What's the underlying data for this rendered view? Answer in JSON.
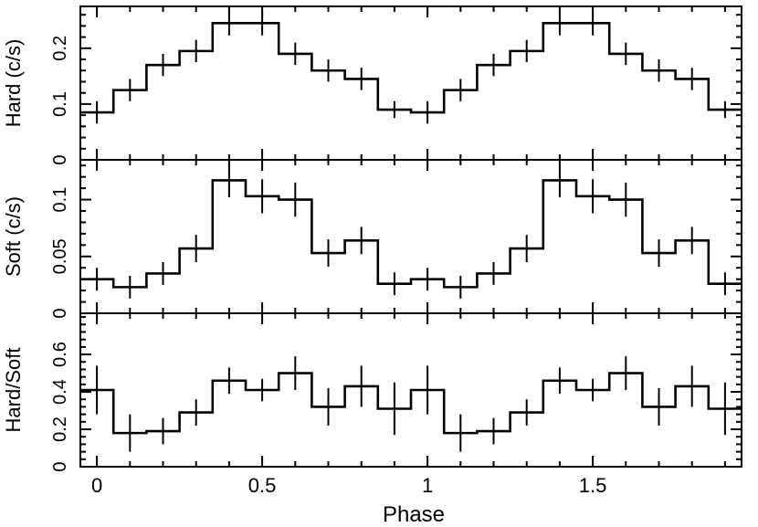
{
  "chart_data": [
    {
      "type": "line",
      "title": "",
      "xlabel": "",
      "ylabel": "Hard (c/s)",
      "xlim": [
        -0.05,
        1.95
      ],
      "ylim": [
        0,
        0.275
      ],
      "yticks": [
        0,
        0.1,
        0.2
      ],
      "ytick_labels": [
        "0",
        "0.1",
        "0.2"
      ],
      "grid": false,
      "x": [
        0.0,
        0.1,
        0.2,
        0.3,
        0.4,
        0.5,
        0.6,
        0.7,
        0.8,
        0.9,
        1.0,
        1.1,
        1.2,
        1.3,
        1.4,
        1.5,
        1.6,
        1.7,
        1.8,
        1.9
      ],
      "values": [
        0.085,
        0.125,
        0.17,
        0.195,
        0.245,
        0.245,
        0.19,
        0.16,
        0.145,
        0.09,
        0.085,
        0.125,
        0.17,
        0.195,
        0.245,
        0.245,
        0.19,
        0.16,
        0.145,
        0.09
      ],
      "errors": [
        0.02,
        0.02,
        0.02,
        0.02,
        0.022,
        0.022,
        0.02,
        0.02,
        0.02,
        0.015,
        0.02,
        0.02,
        0.02,
        0.02,
        0.022,
        0.022,
        0.02,
        0.02,
        0.02,
        0.015
      ]
    },
    {
      "type": "line",
      "title": "",
      "xlabel": "",
      "ylabel": "Soft (c/s)",
      "xlim": [
        -0.05,
        1.95
      ],
      "ylim": [
        0,
        0.135
      ],
      "yticks": [
        0,
        0.05,
        0.1
      ],
      "ytick_labels": [
        "0",
        "0.05",
        "0.1"
      ],
      "grid": false,
      "x": [
        0.0,
        0.1,
        0.2,
        0.3,
        0.4,
        0.5,
        0.6,
        0.7,
        0.8,
        0.9,
        1.0,
        1.1,
        1.2,
        1.3,
        1.4,
        1.5,
        1.6,
        1.7,
        1.8,
        1.9
      ],
      "values": [
        0.03,
        0.023,
        0.035,
        0.057,
        0.117,
        0.103,
        0.1,
        0.053,
        0.064,
        0.026,
        0.03,
        0.023,
        0.035,
        0.057,
        0.117,
        0.103,
        0.1,
        0.053,
        0.064,
        0.026
      ],
      "errors": [
        0.01,
        0.01,
        0.01,
        0.012,
        0.015,
        0.015,
        0.015,
        0.012,
        0.012,
        0.01,
        0.01,
        0.01,
        0.01,
        0.012,
        0.015,
        0.015,
        0.015,
        0.012,
        0.012,
        0.01
      ]
    },
    {
      "type": "line",
      "title": "",
      "xlabel": "Phase",
      "ylabel": "Hard/Soft",
      "xlim": [
        -0.05,
        1.95
      ],
      "ylim": [
        0,
        0.82
      ],
      "yticks": [
        0,
        0.2,
        0.4,
        0.6
      ],
      "ytick_labels": [
        "0",
        "0.2",
        "0.4",
        "0.6"
      ],
      "xticks": [
        0,
        0.5,
        1,
        1.5
      ],
      "xtick_labels": [
        "0",
        "0.5",
        "1",
        "1.5"
      ],
      "grid": false,
      "x": [
        0.0,
        0.1,
        0.2,
        0.3,
        0.4,
        0.5,
        0.6,
        0.7,
        0.8,
        0.9,
        1.0,
        1.1,
        1.2,
        1.3,
        1.4,
        1.5,
        1.6,
        1.7,
        1.8,
        1.9
      ],
      "values": [
        0.41,
        0.18,
        0.19,
        0.29,
        0.46,
        0.41,
        0.5,
        0.32,
        0.43,
        0.31,
        0.41,
        0.18,
        0.19,
        0.29,
        0.46,
        0.41,
        0.5,
        0.32,
        0.43,
        0.31
      ],
      "errors": [
        0.13,
        0.1,
        0.07,
        0.07,
        0.07,
        0.06,
        0.09,
        0.1,
        0.11,
        0.14,
        0.13,
        0.1,
        0.07,
        0.07,
        0.07,
        0.06,
        0.09,
        0.1,
        0.11,
        0.14
      ]
    }
  ]
}
